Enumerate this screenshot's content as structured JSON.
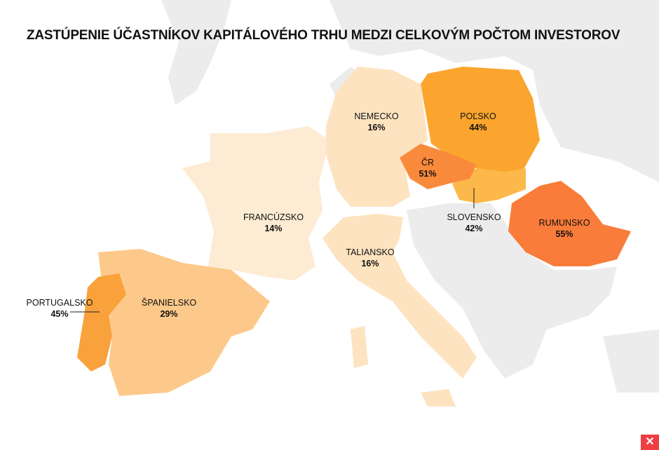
{
  "title": "ZASTÚPENIE ÚČASTNÍKOV KAPITÁLOVÉHO TRHU MEDZI CELKOVÝM POČTOM INVESTOROV",
  "colors": {
    "background_land": "#ececec",
    "sea": "#ffffff",
    "scale": [
      "#fdebd3",
      "#fde0bb",
      "#fdc98a",
      "#fcb64a",
      "#fba52e",
      "#f98c3c",
      "#f97c3a"
    ],
    "logo": "#ef3e42"
  },
  "countries": [
    {
      "name": "NEMECKO",
      "value": "16%",
      "percent": 16,
      "color": "#fde3c0"
    },
    {
      "name": "POĽSKO",
      "value": "44%",
      "percent": 44,
      "color": "#fba52e"
    },
    {
      "name": "ČR",
      "value": "51%",
      "percent": 51,
      "color": "#f98a3c"
    },
    {
      "name": "SLOVENSKO",
      "value": "42%",
      "percent": 42,
      "color": "#fcb84a"
    },
    {
      "name": "RUMUNSKO",
      "value": "55%",
      "percent": 55,
      "color": "#f97c3a"
    },
    {
      "name": "FRANCÚZSKO",
      "value": "14%",
      "percent": 14,
      "color": "#fdebd3"
    },
    {
      "name": "TALIANSKO",
      "value": "16%",
      "percent": 16,
      "color": "#fde3c0"
    },
    {
      "name": "PORTUGALSKO",
      "value": "45%",
      "percent": 45,
      "color": "#f9a13a"
    },
    {
      "name": "ŠPANIELSKO",
      "value": "29%",
      "percent": 29,
      "color": "#fdc98a"
    }
  ],
  "logo_icon": "x-logo-icon"
}
